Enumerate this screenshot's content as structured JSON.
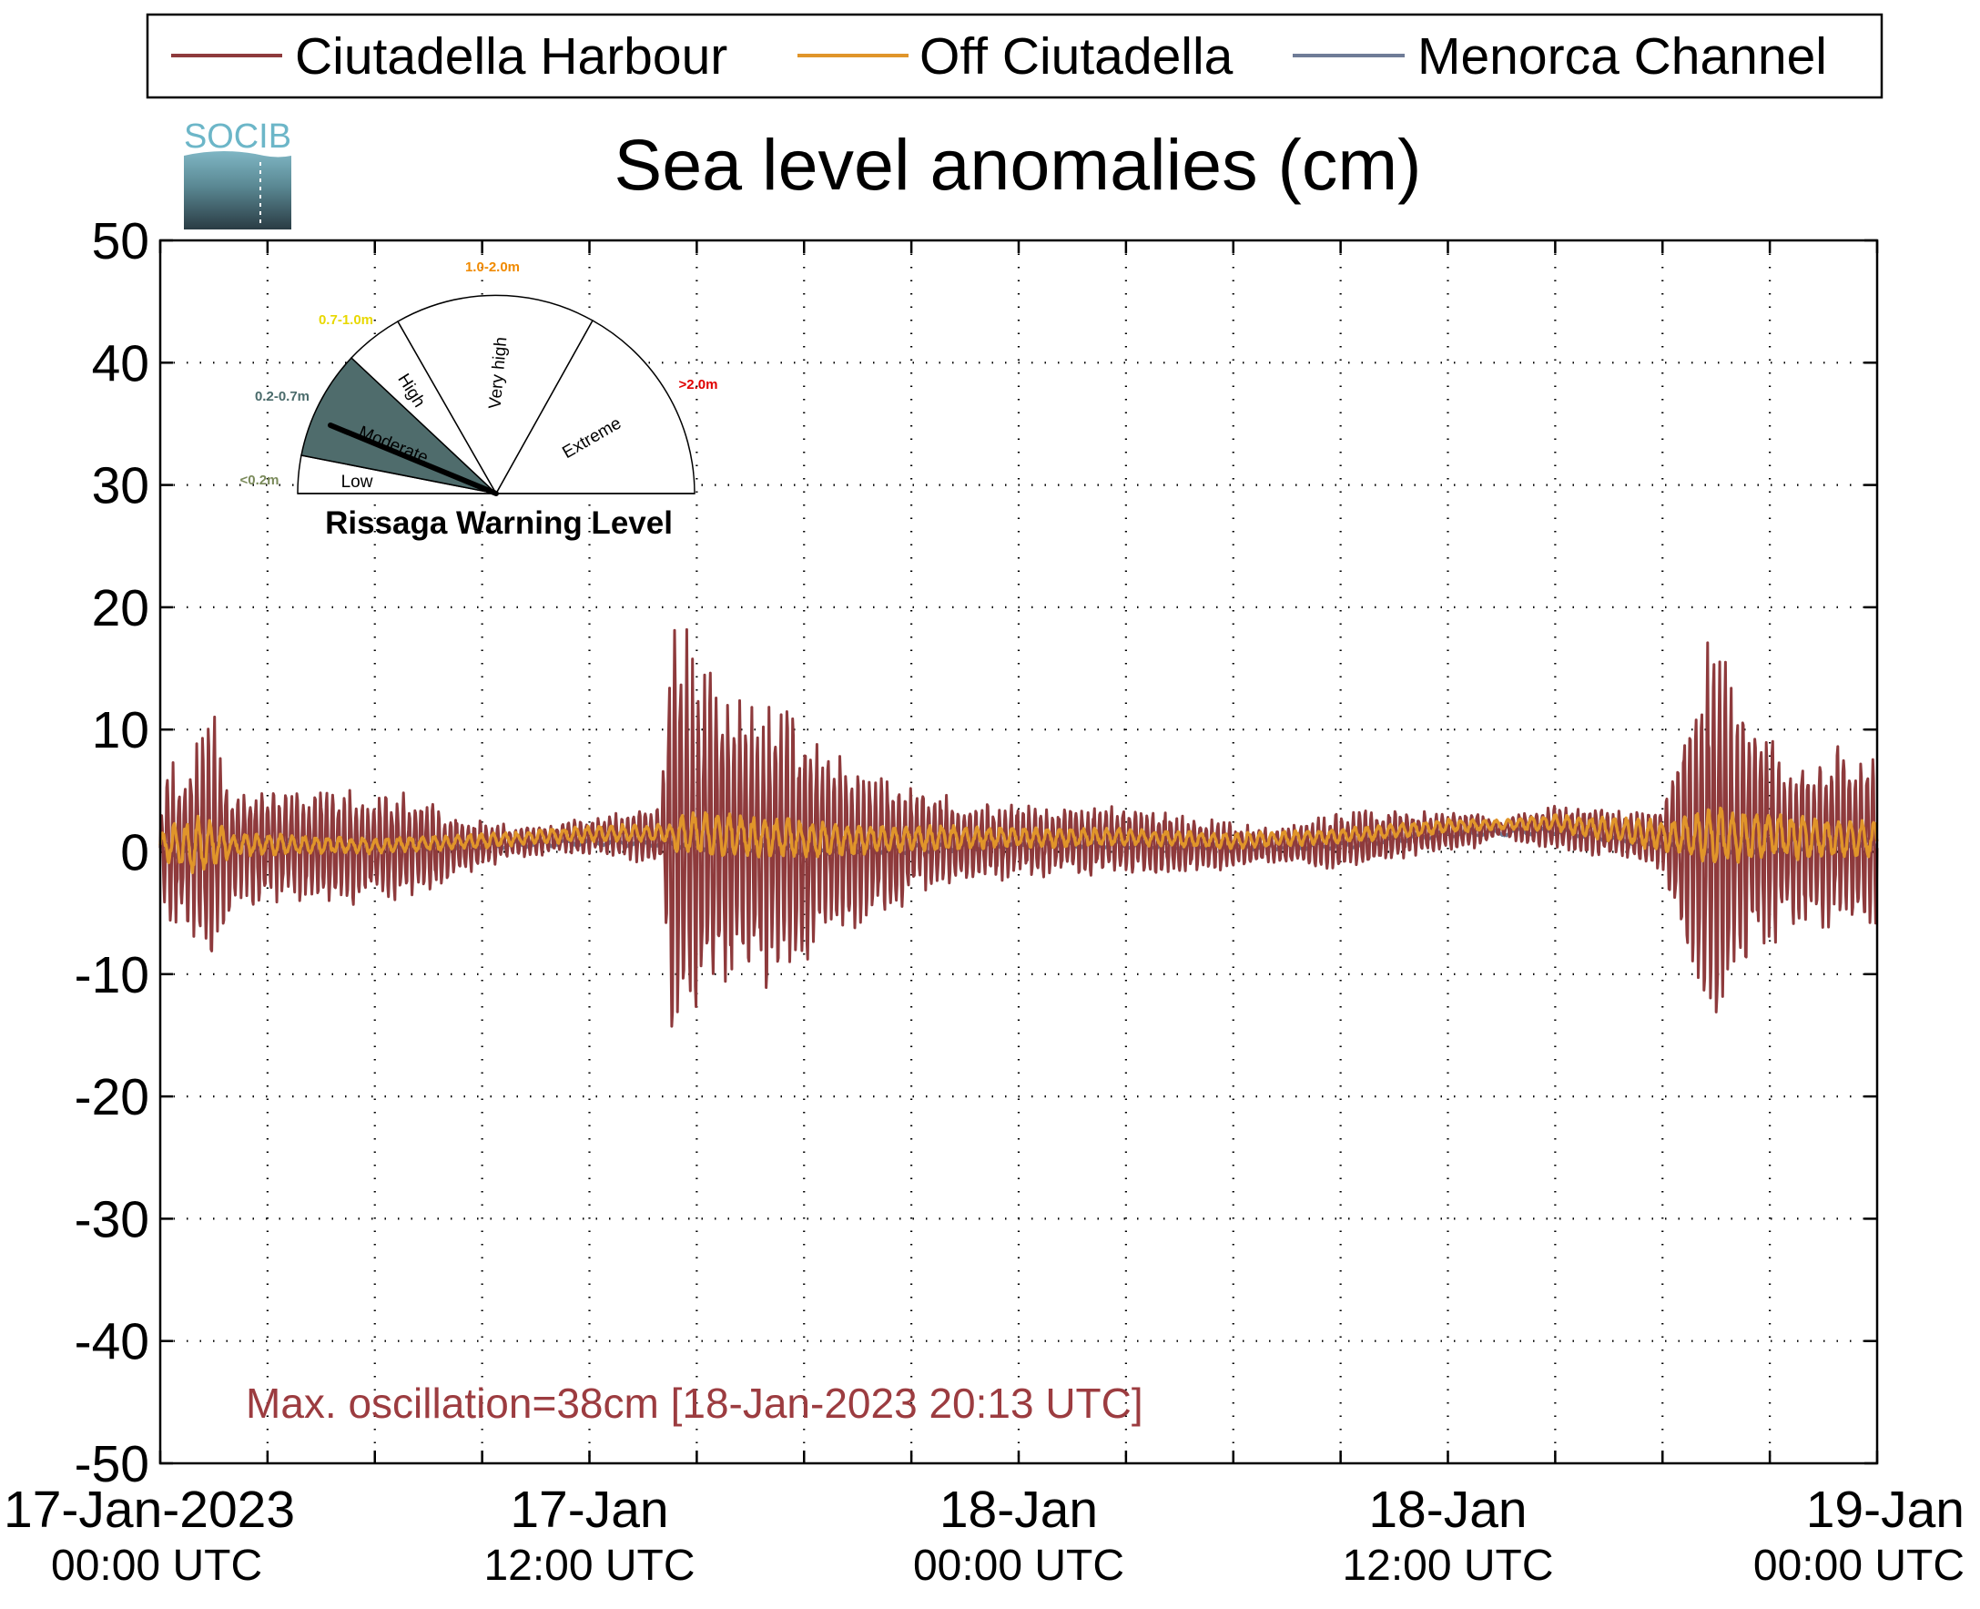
{
  "logo": {
    "text": "SOCIB"
  },
  "colors": {
    "harbour": "#8e3a3c",
    "off": "#e0952a",
    "channel": "#6f7c97",
    "annotation": "#9c3c40",
    "moderate_fill": "#4f6c6c",
    "low_label": "#7a8a5a",
    "moderate_label": "#4a6b6b",
    "high_label": "#e8d800",
    "veryhigh_label": "#f08a00",
    "extreme_label": "#e00000"
  },
  "chart_data": {
    "type": "line",
    "title": "Sea level anomalies (cm)",
    "ylim": [
      -50,
      50
    ],
    "yticks": [
      50,
      40,
      30,
      20,
      10,
      0,
      -10,
      -20,
      -30,
      -40,
      -50
    ],
    "xlim_hours": [
      0,
      48
    ],
    "x_minor_tick_hours": [
      3,
      6,
      9,
      15,
      18,
      21,
      27,
      30,
      33,
      39,
      42,
      45
    ],
    "x_major_ticks": [
      {
        "hour": 0,
        "line1": "17-Jan-2023",
        "line2": "00:00 UTC"
      },
      {
        "hour": 12,
        "line1": "17-Jan",
        "line2": "12:00 UTC"
      },
      {
        "hour": 24,
        "line1": "18-Jan",
        "line2": "00:00 UTC"
      },
      {
        "hour": 36,
        "line1": "18-Jan",
        "line2": "12:00 UTC"
      },
      {
        "hour": 48,
        "line1": "19-Jan",
        "line2": "00:00 UTC"
      }
    ],
    "grid": true,
    "legend_position": "top",
    "series": [
      {
        "name": "Ciutadella Harbour",
        "key": "harbour",
        "mean_hours": [
          0,
          3,
          6,
          9,
          12,
          15,
          18,
          21,
          24,
          27,
          30,
          33,
          36,
          39,
          42,
          45,
          48
        ],
        "mean_values": [
          0.3,
          0.5,
          0.3,
          0.6,
          1.3,
          1.2,
          0.4,
          0.7,
          0.8,
          1.0,
          0.4,
          0.8,
          1.7,
          2.0,
          1.0,
          1.0,
          1.0
        ],
        "envelope_hours": [
          0,
          0.3,
          0.5,
          1,
          1.5,
          2,
          3,
          4,
          5,
          6,
          7,
          8,
          9,
          10,
          11,
          12,
          13,
          14,
          14.3,
          14.5,
          15,
          16,
          17,
          18,
          19,
          20,
          21,
          22,
          23,
          24,
          25,
          27,
          28.5,
          30,
          31,
          32,
          33,
          34,
          35,
          36,
          37,
          37.5,
          38,
          39,
          40,
          41,
          42,
          42.5,
          43,
          43.5,
          44,
          45,
          46,
          47,
          48
        ],
        "envelope_amplitudes": [
          3,
          8,
          6,
          9,
          11,
          5,
          5,
          5,
          5,
          4.5,
          4.5,
          3,
          2,
          1.3,
          1.3,
          1.5,
          2,
          2.5,
          18,
          19,
          15,
          13,
          12,
          10,
          8,
          6,
          5,
          4,
          3.5,
          3,
          3,
          3,
          2.5,
          2,
          1.5,
          2,
          2.5,
          2.5,
          2,
          1.8,
          1.5,
          0.5,
          1.3,
          1.8,
          2,
          2,
          2.5,
          9,
          14,
          19,
          12,
          9,
          7,
          8,
          7
        ]
      },
      {
        "name": "Off Ciutadella",
        "key": "off",
        "mean_hours": [
          0,
          3,
          6,
          9,
          12,
          15,
          18,
          21,
          24,
          27,
          30,
          33,
          36,
          39,
          42,
          45,
          48
        ],
        "mean_values": [
          0.5,
          0.6,
          0.5,
          0.9,
          1.5,
          1.5,
          1.0,
          1.1,
          1.2,
          1.2,
          0.9,
          1.3,
          2.1,
          2.4,
          1.3,
          1.3,
          1.0
        ],
        "envelope_hours": [
          0,
          0.5,
          1,
          1.5,
          2,
          5,
          10,
          14.3,
          14.5,
          15,
          17,
          20,
          24,
          28,
          36,
          37.5,
          42.5,
          43.5,
          45,
          48
        ],
        "envelope_amplitudes": [
          1,
          2,
          2.5,
          2,
          1,
          0.7,
          0.6,
          0.8,
          1.8,
          2,
          1.8,
          1.2,
          0.9,
          0.7,
          0.6,
          0.4,
          1.5,
          2.5,
          2,
          1.5
        ]
      },
      {
        "name": "Menorca Channel",
        "key": "channel",
        "mean_hours": [
          0,
          3,
          6,
          9,
          12,
          15,
          18,
          21,
          24,
          27,
          30,
          33,
          36,
          39,
          42,
          45,
          48
        ],
        "mean_values": [
          0.0,
          0.6,
          0.5,
          0.5,
          0.8,
          0.6,
          0.1,
          0.2,
          0.6,
          0.6,
          0.4,
          0.5,
          1.5,
          1.7,
          0.5,
          0.5,
          0.6
        ],
        "envelope_hours": [
          0,
          2,
          10,
          14.3,
          15,
          20,
          24,
          42,
          43.5,
          45,
          48
        ],
        "envelope_amplitudes": [
          0.7,
          0.5,
          0.3,
          0.3,
          0.5,
          0.4,
          0.3,
          0.3,
          0.8,
          0.6,
          0.5
        ]
      }
    ],
    "annotation": "Max. oscillation=38cm [18-Jan-2023 20:13 UTC]"
  },
  "warning_gauge": {
    "title": "Rissaga Warning Level",
    "levels": [
      {
        "name": "Low",
        "range": "<0.2m"
      },
      {
        "name": "Moderate",
        "range": "0.2-0.7m"
      },
      {
        "name": "High",
        "range": "0.7-1.0m"
      },
      {
        "name": "Very high",
        "range": "1.0-2.0m"
      },
      {
        "name": "Extreme",
        "range": ">2.0m"
      }
    ],
    "current_level": "Moderate"
  }
}
